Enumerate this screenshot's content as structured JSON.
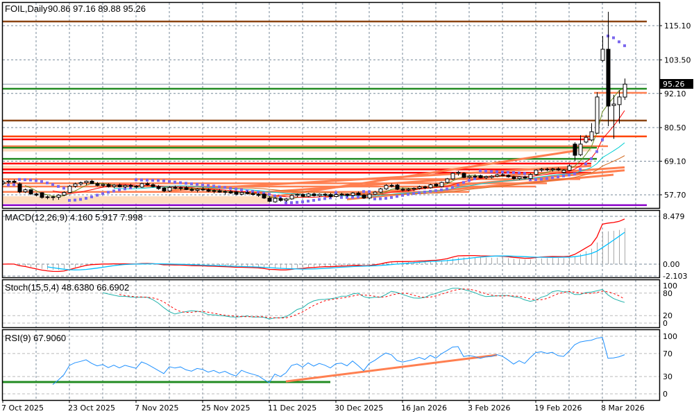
{
  "header": {
    "symbol": "FOIL,Daily",
    "ohlc": "90.86 97.16 89.88 95.26"
  },
  "current_price_label": "95.26",
  "chart_data": {
    "type": "candlestick",
    "title": "FOIL,Daily",
    "price_axis": {
      "ylim": [
        53.0,
        122.0
      ],
      "ticks": [
        "115.10",
        "103.50",
        "92.10",
        "80.50",
        "69.10",
        "57.70"
      ]
    },
    "date_labels": [
      {
        "index": 0,
        "label": "7 Oct 2025"
      },
      {
        "index": 12,
        "label": "23 Oct 2025"
      },
      {
        "index": 24,
        "label": "7 Nov 2025"
      },
      {
        "index": 36,
        "label": "25 Nov 2025"
      },
      {
        "index": 48,
        "label": "11 Dec 2025"
      },
      {
        "index": 60,
        "label": "30 Dec 2025"
      },
      {
        "index": 72,
        "label": "16 Jan 2026"
      },
      {
        "index": 84,
        "label": "3 Feb 2026"
      },
      {
        "index": 96,
        "label": "19 Feb 2026"
      },
      {
        "index": 108,
        "label": "8 Mar 2026"
      }
    ],
    "candles": [
      [
        61.5,
        62.6,
        61.0,
        62.0
      ],
      [
        62.0,
        62.8,
        61.5,
        62.3
      ],
      [
        62.3,
        62.9,
        61.6,
        61.9
      ],
      [
        61.4,
        61.9,
        58.2,
        58.7
      ],
      [
        58.7,
        59.8,
        58.3,
        59.4
      ],
      [
        59.4,
        59.6,
        57.6,
        58.0
      ],
      [
        58.0,
        58.4,
        57.2,
        57.6
      ],
      [
        58.4,
        58.6,
        56.4,
        56.8
      ],
      [
        56.8,
        57.5,
        56.2,
        57.0
      ],
      [
        57.0,
        57.4,
        55.8,
        56.9
      ],
      [
        56.9,
        57.9,
        56.0,
        57.6
      ],
      [
        57.6,
        58.8,
        57.3,
        58.5
      ],
      [
        58.5,
        61.0,
        58.3,
        60.6
      ],
      [
        60.6,
        61.8,
        60.1,
        61.4
      ],
      [
        61.4,
        62.2,
        60.8,
        61.8
      ],
      [
        61.8,
        62.5,
        61.0,
        62.3
      ],
      [
        62.3,
        62.8,
        61.3,
        61.5
      ],
      [
        61.5,
        62.0,
        60.6,
        60.9
      ],
      [
        60.9,
        61.6,
        60.3,
        61.2
      ],
      [
        61.2,
        61.6,
        60.2,
        60.5
      ],
      [
        60.5,
        61.3,
        60.0,
        61.0
      ],
      [
        61.0,
        61.5,
        60.2,
        60.4
      ],
      [
        60.4,
        61.2,
        59.9,
        60.9
      ],
      [
        60.9,
        61.4,
        60.1,
        60.6
      ],
      [
        60.6,
        61.0,
        59.8,
        60.3
      ],
      [
        60.3,
        61.8,
        60.0,
        61.5
      ],
      [
        61.5,
        62.0,
        60.8,
        61.1
      ],
      [
        61.1,
        61.6,
        60.2,
        60.5
      ],
      [
        60.5,
        61.0,
        59.4,
        59.8
      ],
      [
        60.0,
        60.3,
        58.6,
        59.0
      ],
      [
        59.0,
        60.6,
        58.7,
        60.2
      ],
      [
        60.2,
        60.8,
        59.6,
        59.9
      ],
      [
        59.9,
        60.5,
        59.2,
        60.1
      ],
      [
        60.1,
        60.6,
        59.3,
        59.5
      ],
      [
        59.5,
        60.1,
        58.8,
        59.2
      ],
      [
        59.2,
        59.9,
        58.5,
        59.6
      ],
      [
        59.6,
        60.3,
        59.0,
        59.4
      ],
      [
        59.4,
        59.8,
        58.6,
        58.9
      ],
      [
        58.9,
        59.5,
        58.2,
        59.1
      ],
      [
        59.1,
        59.6,
        58.4,
        58.6
      ],
      [
        58.6,
        59.2,
        57.8,
        58.8
      ],
      [
        58.8,
        59.3,
        58.0,
        58.3
      ],
      [
        58.7,
        59.0,
        57.6,
        57.9
      ],
      [
        57.9,
        58.8,
        57.5,
        58.5
      ],
      [
        58.5,
        59.0,
        57.8,
        58.1
      ],
      [
        58.1,
        58.7,
        57.4,
        57.8
      ],
      [
        57.8,
        58.3,
        57.0,
        57.5
      ],
      [
        57.9,
        58.2,
        56.3,
        56.6
      ],
      [
        56.6,
        57.2,
        55.2,
        55.5
      ],
      [
        55.3,
        56.8,
        55.0,
        56.5
      ],
      [
        56.4,
        56.8,
        55.4,
        55.8
      ],
      [
        55.8,
        56.6,
        55.3,
        56.3
      ],
      [
        56.3,
        57.8,
        56.0,
        57.5
      ],
      [
        57.5,
        58.1,
        56.9,
        57.8
      ],
      [
        57.8,
        58.2,
        56.8,
        57.2
      ],
      [
        57.2,
        58.3,
        56.9,
        58.0
      ],
      [
        58.0,
        58.4,
        57.1,
        57.4
      ],
      [
        57.4,
        58.2,
        57.0,
        57.9
      ],
      [
        57.9,
        58.3,
        57.2,
        57.6
      ],
      [
        57.8,
        58.3,
        56.7,
        57.1
      ],
      [
        57.1,
        58.1,
        56.8,
        57.8
      ],
      [
        57.8,
        58.4,
        57.3,
        57.9
      ],
      [
        57.9,
        58.2,
        57.1,
        57.5
      ],
      [
        57.5,
        58.6,
        57.2,
        58.3
      ],
      [
        58.3,
        58.8,
        57.4,
        57.6
      ],
      [
        57.6,
        58.0,
        56.3,
        56.6
      ],
      [
        56.6,
        58.2,
        56.3,
        57.9
      ],
      [
        57.9,
        59.0,
        57.6,
        58.6
      ],
      [
        58.6,
        60.0,
        58.3,
        59.7
      ],
      [
        59.7,
        61.3,
        59.4,
        60.9
      ],
      [
        60.9,
        61.5,
        60.2,
        60.6
      ],
      [
        61.0,
        61.4,
        59.3,
        59.6
      ],
      [
        59.6,
        60.1,
        58.8,
        59.3
      ],
      [
        59.3,
        60.0,
        58.9,
        59.6
      ],
      [
        59.6,
        60.2,
        59.0,
        59.9
      ],
      [
        59.9,
        60.8,
        59.5,
        60.4
      ],
      [
        60.4,
        60.8,
        59.6,
        60.1
      ],
      [
        60.1,
        61.4,
        59.8,
        61.1
      ],
      [
        61.3,
        61.6,
        60.4,
        60.7
      ],
      [
        60.5,
        62.2,
        60.2,
        61.9
      ],
      [
        61.9,
        63.4,
        61.6,
        63.1
      ],
      [
        63.1,
        65.3,
        62.8,
        65.0
      ],
      [
        65.0,
        65.8,
        64.2,
        65.3
      ],
      [
        65.0,
        65.3,
        63.4,
        63.6
      ],
      [
        63.6,
        64.3,
        63.2,
        64.0
      ],
      [
        64.0,
        64.6,
        63.4,
        63.8
      ],
      [
        64.2,
        64.5,
        63.3,
        63.5
      ],
      [
        63.5,
        64.2,
        63.0,
        63.9
      ],
      [
        63.6,
        64.4,
        63.2,
        64.0
      ],
      [
        64.0,
        64.8,
        63.7,
        64.5
      ],
      [
        64.5,
        65.0,
        63.9,
        64.3
      ],
      [
        64.3,
        64.6,
        63.5,
        63.8
      ],
      [
        63.8,
        64.2,
        62.9,
        63.2
      ],
      [
        63.2,
        64.0,
        62.8,
        63.8
      ],
      [
        63.8,
        64.2,
        63.0,
        63.4
      ],
      [
        63.2,
        65.0,
        62.9,
        64.6
      ],
      [
        64.6,
        66.4,
        64.3,
        66.1
      ],
      [
        66.1,
        66.8,
        65.5,
        66.4
      ],
      [
        66.4,
        66.9,
        65.7,
        66.2
      ],
      [
        66.2,
        66.8,
        65.6,
        66.5
      ],
      [
        66.5,
        67.0,
        65.8,
        66.1
      ],
      [
        65.3,
        66.4,
        65.0,
        66.0
      ],
      [
        66.0,
        68.0,
        65.8,
        67.5
      ],
      [
        74.9,
        75.5,
        69.2,
        71.1
      ],
      [
        71.3,
        77.9,
        70.8,
        74.9
      ],
      [
        75.6,
        78.0,
        75.2,
        77.2
      ],
      [
        76.3,
        82.0,
        75.8,
        79.1
      ],
      [
        78.6,
        92.5,
        78.4,
        90.9
      ],
      [
        103.3,
        111.6,
        102.9,
        107.1
      ],
      [
        107.1,
        119.8,
        81.0,
        87.8
      ],
      [
        88.0,
        91.6,
        76.7,
        88.5
      ],
      [
        88.3,
        93.2,
        81.9,
        90.9
      ],
      [
        90.86,
        97.16,
        89.88,
        95.26
      ]
    ],
    "horizontal_levels": [
      {
        "price": 116.5,
        "color": "#8b4513",
        "to_index": 116
      },
      {
        "price": 95.26,
        "color": "#8899aa",
        "to_index": 116
      },
      {
        "price": 93.7,
        "color": "#228b22",
        "to_index": 116
      },
      {
        "price": 92.3,
        "color": "#ff7f50",
        "from_index": 107,
        "to_index": 116
      },
      {
        "price": 82.9,
        "color": "#8b4513",
        "to_index": 116
      },
      {
        "price": 77.5,
        "color": "#ff4500",
        "to_index": 116
      },
      {
        "price": 76.5,
        "color": "#ff0000",
        "to_index": 106
      },
      {
        "price": 74.2,
        "color": "#ff7f50",
        "to_index": 109
      },
      {
        "price": 73.7,
        "color": "#228b22",
        "to_index": 107
      },
      {
        "price": 69.9,
        "color": "#228b22",
        "to_index": 107
      },
      {
        "price": 68.3,
        "color": "#ff0000",
        "to_index": 106
      },
      {
        "price": 66.3,
        "color": "#ff0000",
        "to_index": 102
      },
      {
        "price": 65.2,
        "color": "#ff0000",
        "to_index": 106
      },
      {
        "price": 63.0,
        "color": "#ff7f50",
        "to_index": 104
      },
      {
        "price": 61.6,
        "color": "#ff7f50",
        "to_index": 98
      },
      {
        "price": 60.5,
        "color": "#ff7f50",
        "to_index": 96
      },
      {
        "price": 58.7,
        "color": "#ff7f50",
        "to_index": 84
      },
      {
        "price": 54.2,
        "color": "#8a00c8",
        "to_index": 116
      }
    ],
    "bands": [
      {
        "top": 73.4,
        "bottom": 72.4,
        "color": "#ffdcbf",
        "to_index": 106
      },
      {
        "top": 67.6,
        "bottom": 66.4,
        "color": "#ffdcbf",
        "to_index": 102
      },
      {
        "top": 57.2,
        "bottom": 54.7,
        "color": "#ffdcbf",
        "to_index": 48
      }
    ],
    "trendlines": [
      {
        "from": [
          48,
          56.8
        ],
        "to": [
          103,
          72.6
        ],
        "color": "#ff7f50"
      },
      {
        "from": [
          44,
          58.2
        ],
        "to": [
          112,
          67.0
        ],
        "color": "#ff7f50"
      },
      {
        "from": [
          58,
          57.0
        ],
        "to": [
          112,
          66.0
        ],
        "color": "#ff7f50"
      },
      {
        "from": [
          30,
          59.2
        ],
        "to": [
          106,
          67.5
        ],
        "color": "#ff7f50"
      },
      {
        "from": [
          62,
          56.2
        ],
        "to": [
          110,
          64.5
        ],
        "color": "#ff7f50"
      }
    ],
    "moving_averages": [
      {
        "period": 5,
        "color": "#6b8e23"
      },
      {
        "period": 10,
        "color": "#ff0000"
      },
      {
        "period": 21,
        "color": "#00ced1"
      },
      {
        "period": 34,
        "color": "#d2691e"
      }
    ],
    "sar": {
      "step": 0.02,
      "max": 0.2,
      "color": "#7b68ee"
    },
    "macd": {
      "label": "MACD(12,26,9) 4.160 5.917 7.998",
      "fast": 12,
      "slow": 26,
      "signal": 9,
      "ylim": [
        -2.103,
        8.479
      ],
      "ticks": [
        "8.479",
        "0.00",
        "-2.103"
      ],
      "main_color": "#ff0000",
      "signal_color": "#00bfff",
      "hist_color": "#a9a9a9"
    },
    "stoch": {
      "label": "Stoch(15,5,4) 48.6380 66.6902",
      "k": 15,
      "slowing": 5,
      "d": 4,
      "ylim": [
        0,
        100
      ],
      "ticks": [
        "100",
        "80",
        "20",
        "0"
      ],
      "k_color": "#20b2aa",
      "d_color": "#ff0000"
    },
    "rsi": {
      "label": "RSI(9) 67.9060",
      "period": 9,
      "ylim": [
        0,
        100
      ],
      "ticks": [
        "100",
        "70",
        "30",
        "0"
      ],
      "color": "#1e90ff",
      "lines": [
        {
          "from": [
            0,
            20.5
          ],
          "to": [
            59,
            20.5
          ],
          "color": "#228b22"
        },
        {
          "from": [
            51,
            21.5
          ],
          "to": [
            89,
            67.5
          ],
          "color": "#ff7f50"
        }
      ]
    }
  }
}
